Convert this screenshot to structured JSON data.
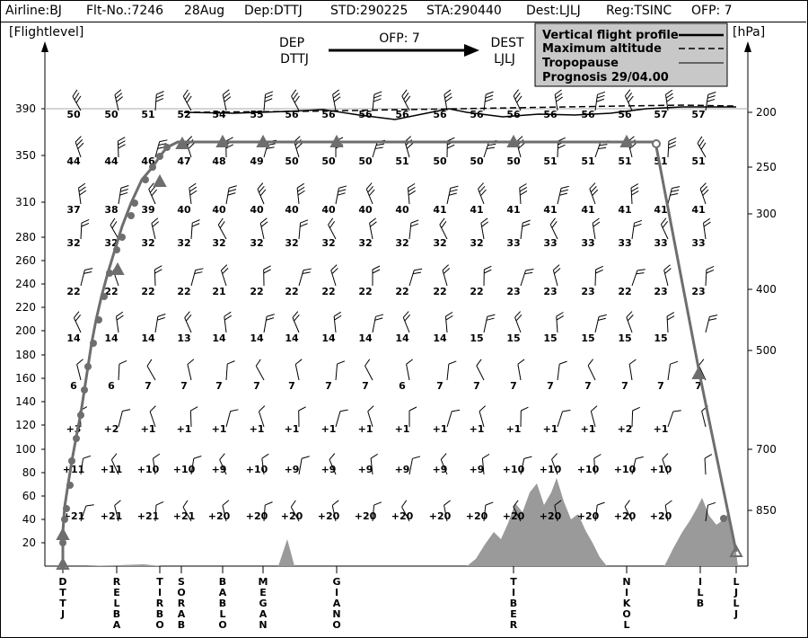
{
  "header": [
    {
      "k": "airline",
      "text": "Airline:BJ"
    },
    {
      "k": "flight",
      "text": "Flt-No.:7246"
    },
    {
      "k": "date",
      "text": "28Aug"
    },
    {
      "k": "dep",
      "text": "Dep:DTTJ"
    },
    {
      "k": "std",
      "text": "STD:290225"
    },
    {
      "k": "sta",
      "text": "STA:290440"
    },
    {
      "k": "dest",
      "text": "Dest:LJLJ"
    },
    {
      "k": "reg",
      "text": "Reg:TSINC"
    },
    {
      "k": "ofp",
      "text": "OFP: 7"
    }
  ],
  "axes": {
    "left_title": "[Flightlevel]",
    "right_title": "[hPa]",
    "fl_ticks": [
      20,
      40,
      60,
      80,
      100,
      120,
      140,
      160,
      180,
      200,
      220,
      240,
      260,
      280,
      310,
      350,
      390
    ],
    "hpa_ticks": [
      "200",
      "250",
      "300",
      "400",
      "500",
      "700",
      "850"
    ]
  },
  "route": {
    "dep_label": "DEP",
    "dep_code": "DTTJ",
    "ofp_label": "OFP: 7",
    "dest_label": "DEST",
    "dest_code": "LJLJ"
  },
  "legend": {
    "vertical_profile": "Vertical flight profile",
    "max_altitude": "Maximum altitude",
    "tropopause": "Tropopause",
    "prognosis": "Prognosis  29/04.00"
  },
  "waypoints": [
    "DTTJ",
    "RELBA",
    "TIRBO",
    "SORAB",
    "BABLO",
    "MEGAN",
    "GIANO",
    "TIBER",
    "NIKOL",
    "ILB",
    "LJLJ"
  ],
  "temperature_rows": [
    {
      "fl": 390,
      "values": [
        "50",
        "50",
        "51",
        "52",
        "54",
        "55",
        "56",
        "56",
        "56",
        "56",
        "56",
        "56",
        "56",
        "56",
        "56",
        "56",
        "57",
        "57"
      ]
    },
    {
      "fl": 350,
      "values": [
        "44",
        "44",
        "46",
        "47",
        "48",
        "49",
        "50",
        "50",
        "50",
        "51",
        "50",
        "50",
        "50",
        "51",
        "51",
        "51",
        "51",
        "51"
      ]
    },
    {
      "fl": 310,
      "values": [
        "37",
        "38",
        "39",
        "40",
        "40",
        "40",
        "40",
        "40",
        "40",
        "40",
        "41",
        "41",
        "41",
        "41",
        "41",
        "41",
        "41",
        "41"
      ]
    },
    {
      "fl": 280,
      "values": [
        "32",
        "32",
        "32",
        "32",
        "32",
        "32",
        "32",
        "32",
        "32",
        "32",
        "32",
        "32",
        "33",
        "33",
        "33",
        "33",
        "33",
        "33"
      ]
    },
    {
      "fl": 240,
      "values": [
        "22",
        "22",
        "22",
        "22",
        "21",
        "22",
        "22",
        "22",
        "22",
        "22",
        "22",
        "22",
        "23",
        "23",
        "23",
        "22",
        "23",
        "23"
      ]
    },
    {
      "fl": 200,
      "values": [
        "14",
        "14",
        "14",
        "13",
        "14",
        "14",
        "14",
        "14",
        "14",
        "14",
        "14",
        "15",
        "15",
        "15",
        "15",
        "15",
        "15",
        ""
      ]
    },
    {
      "fl": 160,
      "values": [
        "6",
        "6",
        "7",
        "7",
        "7",
        "7",
        "7",
        "7",
        "7",
        "6",
        "7",
        "7",
        "7",
        "7",
        "7",
        "7",
        "7",
        "7"
      ]
    },
    {
      "fl": 120,
      "values": [
        "+3",
        "+2",
        "+1",
        "+1",
        "+1",
        "+1",
        "+1",
        "+1",
        "+1",
        "+1",
        "+1",
        "+1",
        "+1",
        "+1",
        "+1",
        "+2",
        "+1",
        ""
      ]
    },
    {
      "fl": 80,
      "values": [
        "+11",
        "+11",
        "+10",
        "+10",
        "+9",
        "+10",
        "+9",
        "+9",
        "+9",
        "+9",
        "+9",
        "+9",
        "+10",
        "+10",
        "+10",
        "+10",
        "+10",
        ""
      ]
    },
    {
      "fl": 40,
      "values": [
        "+21",
        "+21",
        "+21",
        "+21",
        "+20",
        "+20",
        "+20",
        "+20",
        "+20",
        "+20",
        "+20",
        "+20",
        "+20",
        "+20",
        "+20",
        "+20",
        "+20",
        ""
      ]
    }
  ],
  "colors": {
    "profile": "#6e6e6e",
    "terrain": "#9a9a9a",
    "legend_bg": "#c8c8c8"
  }
}
